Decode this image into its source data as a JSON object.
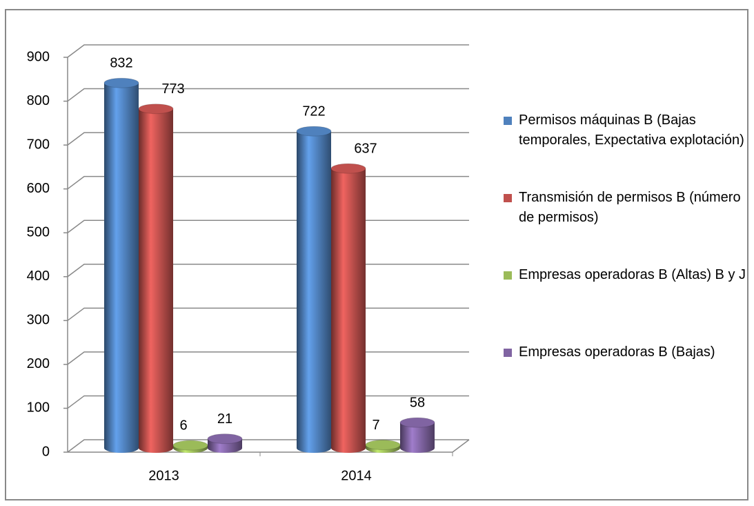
{
  "chart_data": {
    "type": "bar3d",
    "categories": [
      "2013",
      "2014"
    ],
    "series": [
      {
        "name": "Permisos máquinas B (Bajas temporales, Expectativa explotación)",
        "color": "#4f81bd",
        "values": [
          832,
          722
        ]
      },
      {
        "name": "Transmisión de permisos B (número de permisos)",
        "color": "#c0504d",
        "values": [
          773,
          637
        ]
      },
      {
        "name": "Empresas operadoras B (Altas) B y J",
        "color": "#9bbb59",
        "values": [
          6,
          7
        ]
      },
      {
        "name": "Empresas operadoras B (Bajas)",
        "color": "#8064a2",
        "values": [
          21,
          58
        ]
      }
    ],
    "ylim": [
      0,
      900
    ],
    "yticks": [
      0,
      100,
      200,
      300,
      400,
      500,
      600,
      700,
      800,
      900
    ],
    "grid": true,
    "legend": "right"
  }
}
